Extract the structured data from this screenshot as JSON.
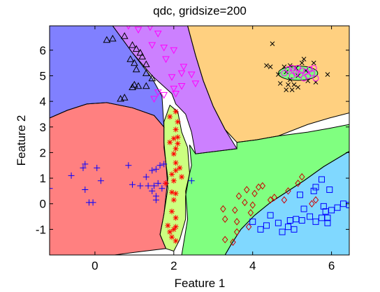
{
  "chart_data": {
    "type": "scatter",
    "title": "qdc, gridsize=200",
    "xlabel": "Feature 1",
    "ylabel": "Feature 2",
    "xlim": [
      -1.15,
      6.45
    ],
    "ylim": [
      -2.0,
      6.95
    ],
    "xticks": [
      0,
      2,
      4,
      6
    ],
    "yticks": [
      -1,
      0,
      1,
      2,
      3,
      4,
      5,
      6
    ],
    "grid": false,
    "legend": "none",
    "colors": {
      "region_blue": "#8080ff",
      "region_violet": "#cc80ff",
      "region_orange": "#ffd080",
      "region_red": "#ff8080",
      "region_green": "#80ff80",
      "region_sky": "#80d8ff",
      "region_yellow": "#ccff80",
      "outline": "#000000"
    },
    "regions": [
      {
        "class": "violet",
        "color": "#cc80ff",
        "boundary": [
          [
            0.45,
            6.95
          ],
          [
            2.35,
            6.95
          ],
          [
            2.55,
            5.8
          ],
          [
            2.75,
            4.8
          ],
          [
            3.0,
            3.8
          ],
          [
            3.3,
            2.9
          ],
          [
            3.6,
            2.15
          ],
          [
            2.55,
            1.95
          ],
          [
            2.45,
            2.8
          ],
          [
            2.3,
            3.5
          ],
          [
            2.05,
            3.9
          ],
          [
            1.95,
            4.3
          ],
          [
            1.45,
            5.0
          ],
          [
            0.95,
            5.9
          ]
        ]
      },
      {
        "class": "blue",
        "color": "#8080ff",
        "boundary": [
          [
            -1.15,
            6.95
          ],
          [
            0.45,
            6.95
          ],
          [
            0.95,
            5.9
          ],
          [
            1.45,
            4.9
          ],
          [
            1.7,
            4.2
          ],
          [
            1.75,
            3.0
          ],
          [
            1.5,
            3.45
          ],
          [
            0.95,
            3.75
          ],
          [
            0.3,
            3.95
          ],
          [
            -0.2,
            3.9
          ],
          [
            -0.7,
            3.65
          ],
          [
            -1.15,
            3.35
          ]
        ]
      },
      {
        "class": "orange",
        "color": "#ffd080",
        "boundary": [
          [
            2.35,
            6.95
          ],
          [
            6.45,
            6.95
          ],
          [
            6.45,
            3.55
          ],
          [
            5.95,
            3.35
          ],
          [
            5.4,
            3.1
          ],
          [
            4.65,
            2.65
          ],
          [
            4.1,
            2.5
          ],
          [
            3.6,
            2.4
          ],
          [
            3.3,
            2.9
          ],
          [
            3.0,
            3.8
          ],
          [
            2.75,
            4.8
          ],
          [
            2.55,
            5.8
          ]
        ]
      },
      {
        "class": "red",
        "color": "#ff8080",
        "boundary": [
          [
            -1.15,
            3.35
          ],
          [
            -0.7,
            3.65
          ],
          [
            -0.2,
            3.9
          ],
          [
            0.3,
            3.95
          ],
          [
            0.95,
            3.75
          ],
          [
            1.5,
            3.45
          ],
          [
            1.75,
            3.0
          ],
          [
            1.75,
            2.2
          ],
          [
            1.85,
            1.0
          ],
          [
            1.75,
            -0.4
          ],
          [
            1.65,
            -1.2
          ],
          [
            1.8,
            -1.75
          ],
          [
            1.0,
            -1.9
          ],
          [
            0.5,
            -2.0
          ],
          [
            -1.15,
            -2.0
          ]
        ]
      },
      {
        "class": "green",
        "color": "#80ff80",
        "boundary": [
          [
            2.4,
            2.3
          ],
          [
            2.55,
            1.95
          ],
          [
            3.6,
            2.15
          ],
          [
            3.6,
            2.4
          ],
          [
            4.1,
            2.5
          ],
          [
            4.65,
            2.65
          ],
          [
            5.4,
            2.8
          ],
          [
            5.95,
            2.95
          ],
          [
            6.45,
            3.1
          ],
          [
            6.45,
            2.05
          ],
          [
            5.8,
            1.45
          ],
          [
            5.3,
            0.9
          ],
          [
            4.85,
            0.45
          ],
          [
            4.45,
            0.05
          ],
          [
            4.05,
            -0.45
          ],
          [
            3.7,
            -1.0
          ],
          [
            3.45,
            -1.6
          ],
          [
            3.3,
            -2.0
          ],
          [
            2.2,
            -2.0
          ],
          [
            2.35,
            -0.6
          ],
          [
            2.3,
            0.5
          ],
          [
            2.45,
            1.5
          ]
        ]
      },
      {
        "class": "sky",
        "color": "#80d8ff",
        "boundary": [
          [
            3.3,
            -2.0
          ],
          [
            3.45,
            -1.6
          ],
          [
            3.7,
            -1.0
          ],
          [
            4.05,
            -0.45
          ],
          [
            4.45,
            0.05
          ],
          [
            4.85,
            0.45
          ],
          [
            5.3,
            0.9
          ],
          [
            5.8,
            1.45
          ],
          [
            6.45,
            2.05
          ],
          [
            6.45,
            -2.0
          ]
        ]
      },
      {
        "class": "yellow",
        "color": "#ccff80",
        "boundary": [
          [
            1.9,
            3.85
          ],
          [
            2.1,
            3.6
          ],
          [
            2.2,
            2.8
          ],
          [
            2.35,
            2.2
          ],
          [
            2.4,
            1.2
          ],
          [
            2.3,
            0.3
          ],
          [
            2.3,
            -0.6
          ],
          [
            2.15,
            -1.4
          ],
          [
            2.0,
            -1.85
          ],
          [
            1.8,
            -1.75
          ],
          [
            1.65,
            -1.2
          ],
          [
            1.75,
            -0.4
          ],
          [
            1.85,
            0.6
          ],
          [
            1.8,
            1.6
          ],
          [
            1.75,
            2.4
          ],
          [
            1.75,
            3.2
          ]
        ]
      },
      {
        "class": "green-ellipse",
        "color": "#80ff80",
        "ellipse": {
          "cx": 5.15,
          "cy": 5.1,
          "rx": 0.5,
          "ry": 0.28
        }
      }
    ],
    "series": [
      {
        "marker": "triangle-up",
        "color": "#000000",
        "points": [
          [
            0.3,
            6.4
          ],
          [
            0.45,
            6.45
          ],
          [
            0.75,
            6.55
          ],
          [
            0.95,
            6.2
          ],
          [
            1.05,
            6.05
          ],
          [
            1.15,
            5.9
          ],
          [
            1.2,
            5.75
          ],
          [
            1.3,
            5.45
          ],
          [
            0.9,
            5.65
          ],
          [
            1.0,
            5.5
          ],
          [
            1.05,
            5.25
          ],
          [
            1.3,
            5.1
          ],
          [
            1.45,
            4.9
          ],
          [
            1.0,
            4.65
          ],
          [
            0.95,
            4.55
          ],
          [
            1.1,
            4.6
          ],
          [
            1.3,
            4.6
          ],
          [
            0.75,
            4.15
          ],
          [
            0.65,
            4.1
          ]
        ]
      },
      {
        "marker": "triangle-down",
        "color": "#ff00ff",
        "points": [
          [
            0.85,
            6.95
          ],
          [
            1.1,
            6.8
          ],
          [
            1.4,
            6.9
          ],
          [
            1.6,
            6.65
          ],
          [
            1.45,
            6.2
          ],
          [
            1.75,
            6.1
          ],
          [
            2.0,
            6.0
          ],
          [
            1.8,
            5.65
          ],
          [
            2.25,
            5.35
          ],
          [
            2.45,
            5.05
          ],
          [
            2.2,
            5.1
          ],
          [
            1.95,
            4.95
          ],
          [
            2.55,
            4.7
          ],
          [
            2.2,
            4.6
          ],
          [
            2.0,
            4.5
          ],
          [
            1.75,
            4.25
          ],
          [
            1.5,
            4.1
          ],
          [
            2.05,
            4.3
          ],
          [
            1.6,
            4.35
          ]
        ]
      },
      {
        "marker": "plus",
        "color": "#0000ff",
        "points": [
          [
            -1.15,
            0.6
          ],
          [
            -0.6,
            1.1
          ],
          [
            -0.25,
            1.55
          ],
          [
            -0.3,
            1.4
          ],
          [
            -0.25,
            0.55
          ],
          [
            -0.15,
            0.05
          ],
          [
            -0.05,
            0.05
          ],
          [
            0.05,
            1.4
          ],
          [
            0.15,
            0.9
          ],
          [
            1.35,
            0.7
          ],
          [
            1.5,
            0.7
          ],
          [
            1.6,
            0.8
          ],
          [
            1.7,
            0.6
          ],
          [
            1.55,
            0.3
          ],
          [
            1.55,
            0.15
          ],
          [
            1.45,
            0.5
          ],
          [
            0.85,
            1.5
          ],
          [
            0.95,
            0.75
          ],
          [
            1.15,
            0.7
          ],
          [
            1.3,
            1.05
          ],
          [
            1.45,
            1.3
          ],
          [
            1.55,
            1.35
          ],
          [
            1.65,
            1.5
          ],
          [
            1.75,
            1.55
          ],
          [
            1.8,
            0.8
          ],
          [
            2.45,
            0.9
          ]
        ]
      },
      {
        "marker": "asterisk",
        "color": "#ff0000",
        "points": [
          [
            1.9,
            3.4
          ],
          [
            2.05,
            3.6
          ],
          [
            2.1,
            3.2
          ],
          [
            2.05,
            2.9
          ],
          [
            2.1,
            2.6
          ],
          [
            2.0,
            2.55
          ],
          [
            1.9,
            2.4
          ],
          [
            2.05,
            2.15
          ],
          [
            2.1,
            2.35
          ],
          [
            2.0,
            1.95
          ],
          [
            2.05,
            1.6
          ],
          [
            2.15,
            1.4
          ],
          [
            2.05,
            1.3
          ],
          [
            1.95,
            1.15
          ],
          [
            2.2,
            1.05
          ],
          [
            2.0,
            0.9
          ],
          [
            1.8,
            0.8
          ],
          [
            1.95,
            0.45
          ],
          [
            2.05,
            0.4
          ],
          [
            2.0,
            0.15
          ],
          [
            1.95,
            -0.3
          ],
          [
            2.05,
            -0.55
          ],
          [
            1.85,
            -0.85
          ],
          [
            2.0,
            -1.0
          ],
          [
            2.05,
            -0.9
          ],
          [
            1.95,
            -1.3
          ],
          [
            2.05,
            -1.45
          ],
          [
            1.9,
            -1.1
          ]
        ]
      },
      {
        "marker": "diamond",
        "color": "#cc0000",
        "points": [
          [
            3.3,
            -1.4
          ],
          [
            3.5,
            -1.5
          ],
          [
            3.25,
            -0.2
          ],
          [
            3.3,
            -0.6
          ],
          [
            3.55,
            -0.25
          ],
          [
            3.6,
            -0.7
          ],
          [
            3.6,
            -1.1
          ],
          [
            3.9,
            -0.9
          ],
          [
            3.95,
            -0.35
          ],
          [
            4.0,
            -0.05
          ],
          [
            3.8,
            0.05
          ],
          [
            3.65,
            0.3
          ],
          [
            3.85,
            0.55
          ],
          [
            4.05,
            0.4
          ],
          [
            4.15,
            0.65
          ],
          [
            4.25,
            0.7
          ],
          [
            4.45,
            0.15
          ],
          [
            4.55,
            0.25
          ],
          [
            4.8,
            0.15
          ],
          [
            4.9,
            0.5
          ],
          [
            5.15,
            0.8
          ],
          [
            5.25,
            1.05
          ],
          [
            5.5,
            0.0
          ],
          [
            5.6,
            0.15
          ]
        ]
      },
      {
        "marker": "square",
        "color": "#0000ff",
        "points": [
          [
            4.0,
            -0.7
          ],
          [
            4.2,
            -1.0
          ],
          [
            4.35,
            -0.85
          ],
          [
            4.45,
            -0.45
          ],
          [
            4.65,
            -0.75
          ],
          [
            4.75,
            -1.1
          ],
          [
            4.9,
            -0.9
          ],
          [
            4.95,
            -0.65
          ],
          [
            5.05,
            -1.0
          ],
          [
            5.1,
            -0.6
          ],
          [
            5.25,
            -0.65
          ],
          [
            5.3,
            -0.2
          ],
          [
            5.45,
            -0.5
          ],
          [
            5.6,
            -0.7
          ],
          [
            5.75,
            -0.55
          ],
          [
            5.85,
            -0.3
          ],
          [
            5.9,
            -0.75
          ],
          [
            6.0,
            -0.25
          ],
          [
            6.15,
            -0.15
          ],
          [
            6.3,
            0.0
          ],
          [
            6.45,
            -0.05
          ],
          [
            5.2,
            0.35
          ],
          [
            5.6,
            0.65
          ],
          [
            5.75,
            0.95
          ],
          [
            5.95,
            0.55
          ],
          [
            5.55,
            0.5
          ],
          [
            5.8,
            -0.1
          ],
          [
            5.9,
            -0.55
          ]
        ]
      },
      {
        "marker": "x",
        "color": "#000000",
        "points": [
          [
            4.5,
            6.25
          ],
          [
            4.65,
            5.05
          ],
          [
            4.7,
            4.7
          ],
          [
            4.85,
            4.45
          ],
          [
            4.9,
            4.65
          ],
          [
            4.95,
            4.85
          ],
          [
            5.0,
            4.45
          ],
          [
            5.05,
            4.65
          ],
          [
            5.15,
            4.55
          ],
          [
            5.4,
            4.8
          ],
          [
            5.6,
            4.75
          ],
          [
            5.25,
            5.5
          ],
          [
            5.1,
            5.3
          ],
          [
            4.95,
            5.4
          ],
          [
            4.85,
            5.15
          ],
          [
            5.3,
            5.65
          ],
          [
            5.35,
            5.2
          ],
          [
            5.55,
            5.5
          ],
          [
            5.9,
            5.05
          ],
          [
            4.35,
            5.4
          ],
          [
            4.45,
            5.35
          ],
          [
            4.8,
            5.35
          ],
          [
            5.15,
            5.0
          ]
        ]
      },
      {
        "marker": "circle",
        "color": "#ff00ff",
        "points": [
          [
            4.8,
            5.1
          ],
          [
            4.9,
            5.25
          ],
          [
            5.0,
            5.0
          ],
          [
            5.05,
            5.2
          ],
          [
            5.1,
            5.1
          ],
          [
            5.15,
            5.3
          ],
          [
            5.2,
            5.05
          ],
          [
            5.25,
            5.2
          ],
          [
            5.35,
            5.15
          ],
          [
            5.4,
            5.0
          ],
          [
            5.45,
            5.25
          ],
          [
            5.5,
            5.1
          ],
          [
            5.55,
            5.3
          ],
          [
            5.6,
            4.9
          ],
          [
            5.0,
            5.3
          ],
          [
            5.3,
            4.9
          ]
        ]
      }
    ]
  }
}
